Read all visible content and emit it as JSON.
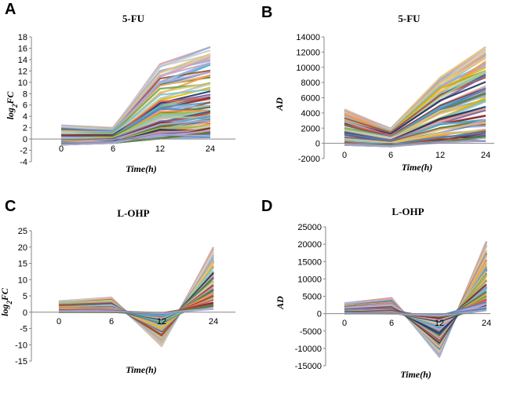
{
  "chart_data": [
    {
      "panel": "A",
      "type": "line",
      "title": "5-FU",
      "xlabel": "Time(h)",
      "ylabel": "log2FC",
      "ylabel_sub": "2",
      "categories": [
        "0",
        "6",
        "12",
        "24"
      ],
      "yticks": [
        -4,
        -2,
        0,
        2,
        4,
        6,
        8,
        10,
        12,
        14,
        16,
        18
      ],
      "ylim": [
        -4,
        18
      ],
      "series_count": 90,
      "series_summary": [
        {
          "name": "highest",
          "values": [
            2.5,
            2.0,
            13.2,
            16.2
          ]
        },
        {
          "name": "lowest",
          "values": [
            -1.0,
            -0.7,
            0.1,
            0.3
          ]
        }
      ],
      "pattern": "rise"
    },
    {
      "panel": "B",
      "type": "line",
      "title": "5-FU",
      "xlabel": "Time(h)",
      "ylabel": "AD",
      "ylabel_sub": "",
      "categories": [
        "0",
        "6",
        "12",
        "24"
      ],
      "yticks": [
        -2000,
        0,
        2000,
        4000,
        6000,
        8000,
        10000,
        12000,
        14000
      ],
      "ylim": [
        -2000,
        14000
      ],
      "series_count": 90,
      "series_summary": [
        {
          "name": "highest",
          "values": [
            4500,
            2000,
            8700,
            12800
          ]
        },
        {
          "name": "lowest",
          "values": [
            -200,
            -400,
            100,
            300
          ]
        }
      ],
      "pattern": "rise"
    },
    {
      "panel": "C",
      "type": "line",
      "title": "L-OHP",
      "xlabel": "Time(h)",
      "ylabel": "log2FC",
      "ylabel_sub": "2",
      "categories": [
        "0",
        "6",
        "12",
        "24"
      ],
      "yticks": [
        -15,
        -10,
        -5,
        0,
        5,
        10,
        15,
        20,
        25
      ],
      "ylim": [
        -15,
        25
      ],
      "series_count": 90,
      "series_summary": [
        {
          "name": "highest",
          "values": [
            3.5,
            4.5,
            -10.5,
            20
          ]
        },
        {
          "name": "lowest",
          "values": [
            0,
            0,
            -0.3,
            1
          ]
        }
      ],
      "pattern": "dip"
    },
    {
      "panel": "D",
      "type": "line",
      "title": "L-OHP",
      "xlabel": "Time(h)",
      "ylabel": "AD",
      "ylabel_sub": "",
      "categories": [
        "0",
        "6",
        "12",
        "24"
      ],
      "yticks": [
        -15000,
        -10000,
        -5000,
        0,
        5000,
        10000,
        15000,
        20000,
        25000
      ],
      "ylim": [
        -15000,
        25000
      ],
      "series_count": 90,
      "series_summary": [
        {
          "name": "highest",
          "values": [
            3000,
            4500,
            -12500,
            20800
          ]
        },
        {
          "name": "lowest",
          "values": [
            0,
            0,
            -300,
            1000
          ]
        }
      ],
      "pattern": "dip"
    }
  ],
  "palette": [
    "#c9cdd2",
    "#d9a0a0",
    "#8fb3d9",
    "#e3c77a",
    "#a8c98a",
    "#c4a3d1",
    "#f0b27a",
    "#7fc3c9",
    "#d95f5f",
    "#4f81bd",
    "#9bbb59",
    "#8064a2",
    "#4bacc6",
    "#f79646",
    "#2e5a87",
    "#7a2828",
    "#5b7f2f",
    "#e6b800",
    "#1f3864",
    "#a0522d",
    "#6aa84f",
    "#cc4125",
    "#3d85c6",
    "#b4a7d6"
  ]
}
